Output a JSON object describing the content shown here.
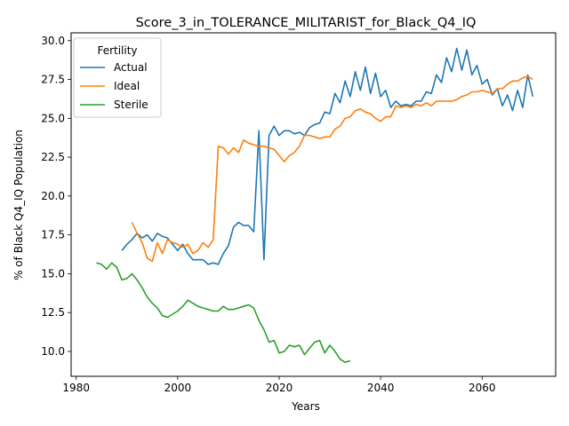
{
  "chart_data": {
    "type": "line",
    "title": "Score_3_in_TOLERANCE_MILITARIST_for_Black_Q4_IQ",
    "xlabel": "Years",
    "ylabel": "% of Black Q4_IQ Population",
    "xlim": [
      1979,
      2074.5
    ],
    "ylim": [
      8.4,
      30.5
    ],
    "xticks": [
      1980,
      2000,
      2020,
      2040,
      2060
    ],
    "yticks": [
      10.0,
      12.5,
      15.0,
      17.5,
      20.0,
      22.5,
      25.0,
      27.5,
      30.0
    ],
    "xtick_labels": [
      "1980",
      "2000",
      "2020",
      "2040",
      "2060"
    ],
    "ytick_labels": [
      "10.0",
      "12.5",
      "15.0",
      "17.5",
      "20.0",
      "22.5",
      "25.0",
      "27.5",
      "30.0"
    ],
    "legend": {
      "title": "Fertility",
      "position": "top-left"
    },
    "series": [
      {
        "name": "Actual",
        "color": "#1f77b4",
        "x": [
          1989,
          1990,
          1991,
          1992,
          1993,
          1994,
          1995,
          1996,
          1997,
          1998,
          1999,
          2000,
          2001,
          2002,
          2003,
          2004,
          2005,
          2006,
          2007,
          2008,
          2009,
          2010,
          2011,
          2012,
          2013,
          2014,
          2015,
          2016,
          2017,
          2018,
          2019,
          2020,
          2021,
          2022,
          2023,
          2024,
          2025,
          2026,
          2027,
          2028,
          2029,
          2030,
          2031,
          2032,
          2033,
          2034,
          2035,
          2036,
          2037,
          2038,
          2039,
          2040,
          2041,
          2042,
          2043,
          2044,
          2045,
          2046,
          2047,
          2048,
          2049,
          2050,
          2051,
          2052,
          2053,
          2054,
          2055,
          2056,
          2057,
          2058,
          2059,
          2060,
          2061,
          2062,
          2063,
          2064,
          2065,
          2066,
          2067,
          2068,
          2069,
          2070
        ],
        "values": [
          16.5,
          16.9,
          17.2,
          17.6,
          17.3,
          17.5,
          17.1,
          17.6,
          17.4,
          17.3,
          16.9,
          16.5,
          16.9,
          16.3,
          15.9,
          15.9,
          15.9,
          15.6,
          15.7,
          15.6,
          16.3,
          16.8,
          18.0,
          18.3,
          18.1,
          18.1,
          17.7,
          24.2,
          15.9,
          23.9,
          24.5,
          23.9,
          24.2,
          24.2,
          24.0,
          24.1,
          23.9,
          24.4,
          24.6,
          24.7,
          25.4,
          25.3,
          26.6,
          26.0,
          27.4,
          26.4,
          28.0,
          26.8,
          28.3,
          26.6,
          27.9,
          26.4,
          26.8,
          25.7,
          26.1,
          25.8,
          25.9,
          25.8,
          26.1,
          26.1,
          26.7,
          26.6,
          27.8,
          27.3,
          28.9,
          28.0,
          29.5,
          28.1,
          29.4,
          27.8,
          28.4,
          27.2,
          27.5,
          26.5,
          26.9,
          25.8,
          26.5,
          25.5,
          26.8,
          25.7,
          27.8,
          26.4
        ]
      },
      {
        "name": "Ideal",
        "color": "#ff7f0e",
        "x": [
          1991,
          1992,
          1993,
          1994,
          1995,
          1996,
          1997,
          1998,
          1999,
          2000,
          2001,
          2002,
          2003,
          2004,
          2005,
          2006,
          2007,
          2008,
          2009,
          2010,
          2011,
          2012,
          2013,
          2014,
          2015,
          2016,
          2017,
          2018,
          2019,
          2020,
          2021,
          2022,
          2023,
          2024,
          2025,
          2026,
          2027,
          2028,
          2029,
          2030,
          2031,
          2032,
          2033,
          2034,
          2035,
          2036,
          2037,
          2038,
          2039,
          2040,
          2041,
          2042,
          2043,
          2044,
          2045,
          2046,
          2047,
          2048,
          2049,
          2050,
          2051,
          2052,
          2053,
          2054,
          2055,
          2056,
          2057,
          2058,
          2059,
          2060,
          2061,
          2062,
          2063,
          2064,
          2065,
          2066,
          2067,
          2068,
          2069,
          2070
        ],
        "values": [
          18.3,
          17.6,
          17.0,
          16.0,
          15.8,
          17.0,
          16.3,
          17.2,
          17.0,
          16.9,
          16.7,
          16.9,
          16.3,
          16.5,
          17.0,
          16.7,
          17.2,
          23.2,
          23.1,
          22.7,
          23.1,
          22.8,
          23.6,
          23.4,
          23.3,
          23.2,
          23.2,
          23.1,
          23.0,
          22.6,
          22.2,
          22.6,
          22.8,
          23.2,
          23.9,
          23.9,
          23.8,
          23.7,
          23.8,
          23.8,
          24.3,
          24.5,
          25.0,
          25.1,
          25.5,
          25.6,
          25.4,
          25.3,
          25.0,
          24.8,
          25.1,
          25.1,
          25.8,
          25.7,
          25.8,
          25.7,
          25.9,
          25.8,
          26.0,
          25.8,
          26.1,
          26.1,
          26.1,
          26.1,
          26.2,
          26.4,
          26.5,
          26.7,
          26.7,
          26.8,
          26.7,
          26.6,
          26.9,
          26.9,
          27.2,
          27.4,
          27.4,
          27.6,
          27.7,
          27.5
        ]
      },
      {
        "name": "Sterile",
        "color": "#2ca02c",
        "x": [
          1984,
          1985,
          1986,
          1987,
          1988,
          1989,
          1990,
          1991,
          1992,
          1993,
          1994,
          1995,
          1996,
          1997,
          1998,
          1999,
          2000,
          2001,
          2002,
          2003,
          2004,
          2005,
          2006,
          2007,
          2008,
          2009,
          2010,
          2011,
          2012,
          2013,
          2014,
          2015,
          2016,
          2017,
          2018,
          2019,
          2020,
          2021,
          2022,
          2023,
          2024,
          2025,
          2026,
          2027,
          2028,
          2029,
          2030,
          2031,
          2032,
          2033,
          2034
        ],
        "values": [
          15.7,
          15.6,
          15.3,
          15.7,
          15.4,
          14.6,
          14.7,
          15.0,
          14.6,
          14.1,
          13.5,
          13.1,
          12.8,
          12.3,
          12.2,
          12.4,
          12.6,
          12.9,
          13.3,
          13.1,
          12.9,
          12.8,
          12.7,
          12.6,
          12.6,
          12.9,
          12.7,
          12.7,
          12.8,
          12.9,
          13.0,
          12.8,
          12.0,
          11.4,
          10.6,
          10.7,
          9.9,
          10.0,
          10.4,
          10.3,
          10.4,
          9.8,
          10.2,
          10.6,
          10.7,
          9.9,
          10.4,
          10.0,
          9.5,
          9.3,
          9.4
        ]
      }
    ]
  }
}
